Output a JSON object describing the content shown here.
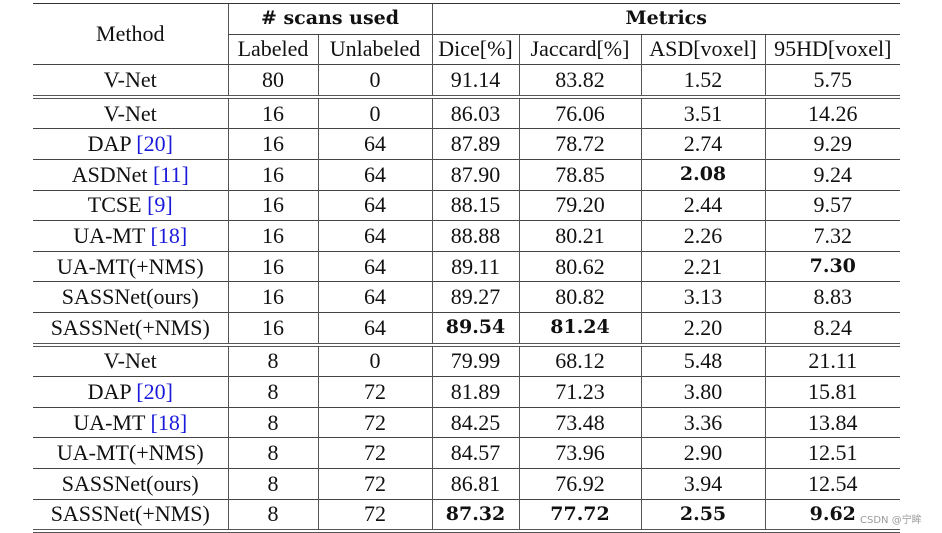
{
  "header": {
    "method": "Method",
    "scans_used": "# scans used",
    "metrics": "Metrics",
    "labeled": "Labeled",
    "unlabeled": "Unlabeled",
    "dice": "Dice[%]",
    "jaccard": "Jaccard[%]",
    "asd": "ASD[voxel]",
    "hd95": "95HD[voxel]"
  },
  "groups": [
    {
      "rows": [
        {
          "method": "V-Net",
          "cite": "",
          "labeled": "80",
          "unlabeled": "0",
          "dice": "91.14",
          "jaccard": "83.82",
          "asd": "1.52",
          "hd95": "5.75",
          "bold": []
        }
      ]
    },
    {
      "rows": [
        {
          "method": "V-Net",
          "cite": "",
          "labeled": "16",
          "unlabeled": "0",
          "dice": "86.03",
          "jaccard": "76.06",
          "asd": "3.51",
          "hd95": "14.26",
          "bold": []
        },
        {
          "method": "DAP ",
          "cite": "[20]",
          "labeled": "16",
          "unlabeled": "64",
          "dice": "87.89",
          "jaccard": "78.72",
          "asd": "2.74",
          "hd95": "9.29",
          "bold": []
        },
        {
          "method": "ASDNet ",
          "cite": "[11]",
          "labeled": "16",
          "unlabeled": "64",
          "dice": "87.90",
          "jaccard": "78.85",
          "asd": "2.08",
          "hd95": "9.24",
          "bold": [
            "asd"
          ]
        },
        {
          "method": "TCSE ",
          "cite": "[9]",
          "labeled": "16",
          "unlabeled": "64",
          "dice": "88.15",
          "jaccard": "79.20",
          "asd": "2.44",
          "hd95": "9.57",
          "bold": []
        },
        {
          "method": "UA-MT ",
          "cite": "[18]",
          "labeled": "16",
          "unlabeled": "64",
          "dice": "88.88",
          "jaccard": "80.21",
          "asd": "2.26",
          "hd95": "7.32",
          "bold": []
        },
        {
          "method": "UA-MT(+NMS)",
          "cite": "",
          "labeled": "16",
          "unlabeled": "64",
          "dice": "89.11",
          "jaccard": "80.62",
          "asd": "2.21",
          "hd95": "7.30",
          "bold": [
            "hd95"
          ]
        },
        {
          "method": "SASSNet(ours)",
          "cite": "",
          "labeled": "16",
          "unlabeled": "64",
          "dice": "89.27",
          "jaccard": "80.82",
          "asd": "3.13",
          "hd95": "8.83",
          "bold": []
        },
        {
          "method": "SASSNet(+NMS)",
          "cite": "",
          "labeled": "16",
          "unlabeled": "64",
          "dice": "89.54",
          "jaccard": "81.24",
          "asd": "2.20",
          "hd95": "8.24",
          "bold": [
            "dice",
            "jaccard"
          ]
        }
      ]
    },
    {
      "rows": [
        {
          "method": "V-Net",
          "cite": "",
          "labeled": "8",
          "unlabeled": "0",
          "dice": "79.99",
          "jaccard": "68.12",
          "asd": "5.48",
          "hd95": "21.11",
          "bold": []
        },
        {
          "method": "DAP ",
          "cite": "[20]",
          "labeled": "8",
          "unlabeled": "72",
          "dice": "81.89",
          "jaccard": "71.23",
          "asd": "3.80",
          "hd95": "15.81",
          "bold": []
        },
        {
          "method": "UA-MT ",
          "cite": "[18]",
          "labeled": "8",
          "unlabeled": "72",
          "dice": "84.25",
          "jaccard": "73.48",
          "asd": "3.36",
          "hd95": "13.84",
          "bold": []
        },
        {
          "method": "UA-MT(+NMS)",
          "cite": "",
          "labeled": "8",
          "unlabeled": "72",
          "dice": "84.57",
          "jaccard": "73.96",
          "asd": "2.90",
          "hd95": "12.51",
          "bold": []
        },
        {
          "method": "SASSNet(ours)",
          "cite": "",
          "labeled": "8",
          "unlabeled": "72",
          "dice": "86.81",
          "jaccard": "76.92",
          "asd": "3.94",
          "hd95": "12.54",
          "bold": []
        },
        {
          "method": "SASSNet(+NMS)",
          "cite": "",
          "labeled": "8",
          "unlabeled": "72",
          "dice": "87.32",
          "jaccard": "77.72",
          "asd": "2.55",
          "hd95": "9.62",
          "bold": [
            "dice",
            "jaccard",
            "asd",
            "hd95"
          ]
        }
      ]
    }
  ],
  "watermark": "CSDN @宁眸",
  "colors": {
    "citation": "#1a1adb",
    "text": "#111111",
    "rule": "#444444"
  }
}
